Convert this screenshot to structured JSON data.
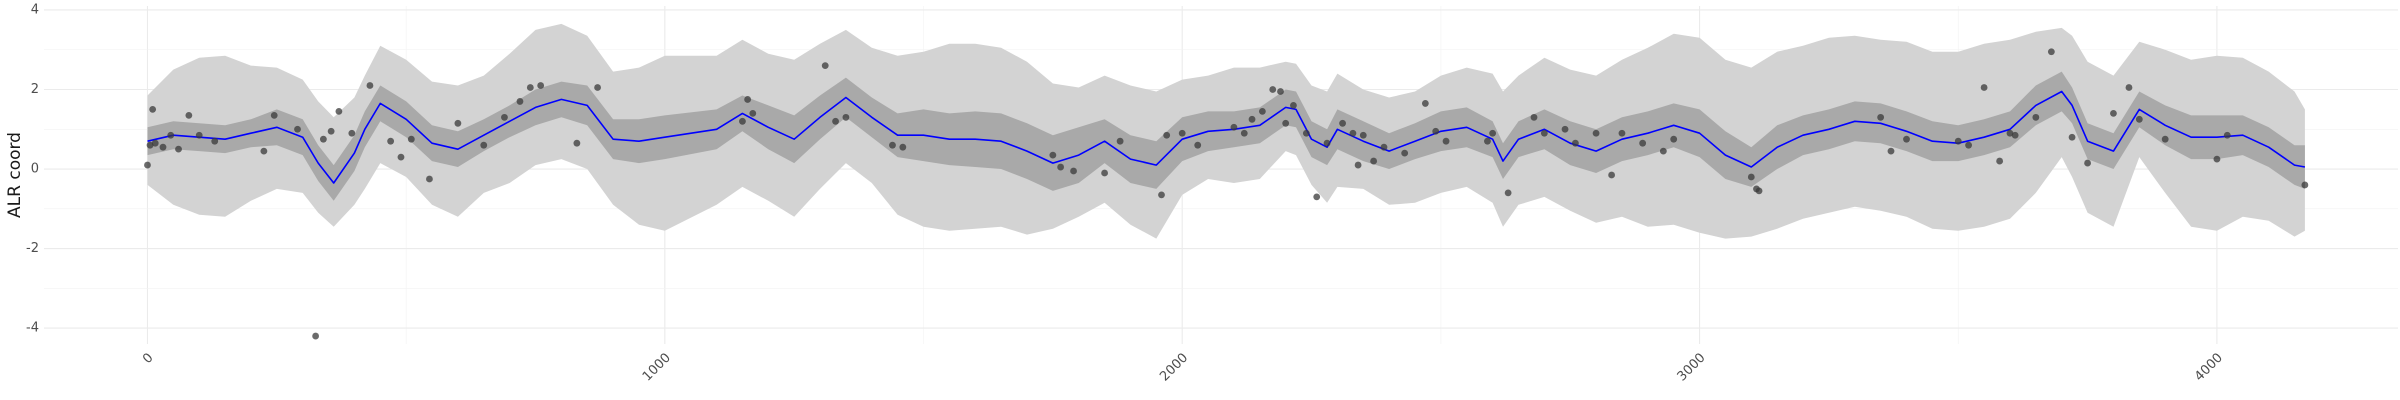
{
  "chart_data": {
    "type": "line",
    "title": "",
    "xlabel": "",
    "ylabel": "ALR coord",
    "xlim": [
      -200,
      4350
    ],
    "ylim": [
      -4.4,
      4.1
    ],
    "grid": true,
    "legend": "none",
    "x_ticks": [
      0,
      1000,
      2000,
      3000,
      4000
    ],
    "x_tick_labels": [
      "0",
      "1000",
      "2000",
      "3000",
      "4000"
    ],
    "y_ticks": [
      -4,
      -2,
      0,
      2,
      4
    ],
    "y_tick_labels": [
      "-4",
      "-2",
      "0",
      "2",
      "4"
    ],
    "colors": {
      "line": "#0000ff",
      "outer_band": "#d3d3d3",
      "inner_band": "#a9a9a9",
      "points": "#3a3a3a",
      "grid": "#ebebeb"
    },
    "series": [
      {
        "kind": "mean_line",
        "x": [
          0,
          50,
          100,
          150,
          200,
          250,
          300,
          330,
          360,
          400,
          420,
          450,
          500,
          550,
          600,
          650,
          700,
          750,
          800,
          850,
          900,
          950,
          1000,
          1100,
          1150,
          1200,
          1250,
          1300,
          1350,
          1400,
          1450,
          1500,
          1550,
          1600,
          1650,
          1700,
          1750,
          1800,
          1850,
          1900,
          1950,
          2000,
          2050,
          2100,
          2150,
          2200,
          2220,
          2250,
          2280,
          2300,
          2350,
          2400,
          2450,
          2500,
          2550,
          2600,
          2620,
          2650,
          2700,
          2750,
          2800,
          2850,
          2900,
          2950,
          3000,
          3050,
          3100,
          3150,
          3200,
          3250,
          3300,
          3350,
          3400,
          3450,
          3500,
          3550,
          3600,
          3650,
          3700,
          3720,
          3750,
          3800,
          3850,
          3900,
          3950,
          4000,
          4050,
          4100,
          4150,
          4170
        ],
        "y": [
          0.7,
          0.85,
          0.8,
          0.75,
          0.9,
          1.05,
          0.8,
          0.15,
          -0.35,
          0.4,
          1.0,
          1.65,
          1.25,
          0.65,
          0.5,
          0.85,
          1.2,
          1.55,
          1.75,
          1.6,
          0.75,
          0.7,
          0.8,
          1.0,
          1.4,
          1.05,
          0.75,
          1.3,
          1.8,
          1.3,
          0.85,
          0.85,
          0.75,
          0.75,
          0.7,
          0.45,
          0.15,
          0.35,
          0.7,
          0.25,
          0.1,
          0.75,
          0.95,
          1.0,
          1.1,
          1.55,
          1.5,
          0.75,
          0.55,
          1.0,
          0.7,
          0.45,
          0.7,
          0.95,
          1.05,
          0.75,
          0.2,
          0.75,
          1.0,
          0.65,
          0.45,
          0.75,
          0.9,
          1.1,
          0.9,
          0.35,
          0.05,
          0.55,
          0.85,
          1.0,
          1.2,
          1.15,
          0.95,
          0.7,
          0.65,
          0.8,
          1.0,
          1.6,
          1.95,
          1.6,
          0.7,
          0.45,
          1.5,
          1.1,
          0.8,
          0.8,
          0.85,
          0.55,
          0.1,
          0.05
        ]
      },
      {
        "kind": "inner_band",
        "x": [
          0,
          50,
          100,
          150,
          200,
          250,
          300,
          330,
          360,
          400,
          420,
          450,
          500,
          550,
          600,
          650,
          700,
          750,
          800,
          850,
          900,
          950,
          1000,
          1100,
          1150,
          1200,
          1250,
          1300,
          1350,
          1400,
          1450,
          1500,
          1550,
          1600,
          1650,
          1700,
          1750,
          1800,
          1850,
          1900,
          1950,
          2000,
          2050,
          2100,
          2150,
          2200,
          2220,
          2250,
          2280,
          2300,
          2350,
          2400,
          2450,
          2500,
          2550,
          2600,
          2620,
          2650,
          2700,
          2750,
          2800,
          2850,
          2900,
          2950,
          3000,
          3050,
          3100,
          3150,
          3200,
          3250,
          3300,
          3350,
          3400,
          3450,
          3500,
          3550,
          3600,
          3650,
          3700,
          3720,
          3750,
          3800,
          3850,
          3900,
          3950,
          4000,
          4050,
          4100,
          4150,
          4170
        ],
        "lower": [
          0.35,
          0.5,
          0.45,
          0.4,
          0.55,
          0.6,
          0.35,
          -0.3,
          -0.8,
          -0.05,
          0.55,
          1.2,
          0.8,
          0.2,
          0.05,
          0.45,
          0.8,
          1.1,
          1.3,
          1.1,
          0.25,
          0.15,
          0.25,
          0.5,
          0.95,
          0.5,
          0.15,
          0.75,
          1.3,
          0.8,
          0.3,
          0.2,
          0.1,
          0.05,
          0.0,
          -0.25,
          -0.55,
          -0.35,
          0.15,
          -0.35,
          -0.5,
          0.2,
          0.45,
          0.55,
          0.65,
          1.1,
          1.05,
          0.3,
          0.1,
          0.5,
          0.2,
          0.0,
          0.25,
          0.45,
          0.55,
          0.3,
          -0.25,
          0.3,
          0.5,
          0.1,
          -0.1,
          0.2,
          0.35,
          0.55,
          0.3,
          -0.25,
          -0.45,
          0.0,
          0.35,
          0.5,
          0.7,
          0.65,
          0.45,
          0.2,
          0.2,
          0.35,
          0.55,
          1.1,
          1.45,
          1.15,
          0.25,
          0.0,
          1.05,
          0.6,
          0.25,
          0.25,
          0.35,
          0.05,
          -0.4,
          -0.5
        ],
        "upper": [
          1.05,
          1.2,
          1.15,
          1.1,
          1.25,
          1.5,
          1.25,
          0.6,
          0.1,
          0.85,
          1.45,
          2.1,
          1.7,
          1.1,
          0.95,
          1.25,
          1.6,
          2.0,
          2.2,
          2.1,
          1.25,
          1.25,
          1.35,
          1.5,
          1.85,
          1.6,
          1.35,
          1.85,
          2.3,
          1.8,
          1.4,
          1.5,
          1.4,
          1.45,
          1.4,
          1.15,
          0.85,
          1.05,
          1.25,
          0.85,
          0.7,
          1.3,
          1.45,
          1.45,
          1.55,
          2.0,
          1.95,
          1.2,
          1.0,
          1.5,
          1.2,
          0.9,
          1.15,
          1.45,
          1.55,
          1.2,
          0.65,
          1.2,
          1.5,
          1.2,
          1.0,
          1.3,
          1.45,
          1.65,
          1.5,
          0.95,
          0.55,
          1.1,
          1.35,
          1.5,
          1.7,
          1.65,
          1.45,
          1.2,
          1.1,
          1.25,
          1.45,
          2.1,
          2.45,
          2.05,
          1.15,
          0.9,
          1.95,
          1.6,
          1.35,
          1.35,
          1.35,
          1.05,
          0.6,
          0.6
        ]
      },
      {
        "kind": "outer_band",
        "x": [
          0,
          50,
          100,
          150,
          200,
          250,
          300,
          330,
          360,
          400,
          420,
          450,
          500,
          550,
          600,
          650,
          700,
          750,
          800,
          850,
          900,
          950,
          1000,
          1100,
          1150,
          1200,
          1250,
          1300,
          1350,
          1400,
          1450,
          1500,
          1550,
          1600,
          1650,
          1700,
          1750,
          1800,
          1850,
          1900,
          1950,
          2000,
          2050,
          2100,
          2150,
          2200,
          2220,
          2250,
          2280,
          2300,
          2350,
          2400,
          2450,
          2500,
          2550,
          2600,
          2620,
          2650,
          2700,
          2750,
          2800,
          2850,
          2900,
          2950,
          3000,
          3050,
          3100,
          3150,
          3200,
          3250,
          3300,
          3350,
          3400,
          3450,
          3500,
          3550,
          3600,
          3650,
          3700,
          3720,
          3750,
          3800,
          3850,
          3900,
          3950,
          4000,
          4050,
          4100,
          4150,
          4170
        ],
        "lower": [
          -0.4,
          -0.9,
          -1.15,
          -1.2,
          -0.8,
          -0.5,
          -0.6,
          -1.1,
          -1.45,
          -0.9,
          -0.5,
          0.15,
          -0.2,
          -0.9,
          -1.2,
          -0.6,
          -0.35,
          0.1,
          0.25,
          0.0,
          -0.9,
          -1.4,
          -1.55,
          -0.9,
          -0.45,
          -0.8,
          -1.2,
          -0.5,
          0.15,
          -0.35,
          -1.15,
          -1.45,
          -1.55,
          -1.5,
          -1.45,
          -1.65,
          -1.5,
          -1.2,
          -0.85,
          -1.4,
          -1.75,
          -0.65,
          -0.25,
          -0.35,
          -0.25,
          0.45,
          0.35,
          -0.4,
          -0.85,
          -0.45,
          -0.5,
          -0.9,
          -0.85,
          -0.6,
          -0.45,
          -0.85,
          -1.45,
          -0.9,
          -0.7,
          -1.05,
          -1.35,
          -1.2,
          -1.45,
          -1.4,
          -1.6,
          -1.75,
          -1.7,
          -1.5,
          -1.25,
          -1.1,
          -0.95,
          -1.05,
          -1.2,
          -1.5,
          -1.55,
          -1.45,
          -1.25,
          -0.6,
          0.3,
          -0.2,
          -1.1,
          -1.45,
          0.3,
          -0.6,
          -1.45,
          -1.55,
          -1.2,
          -1.3,
          -1.7,
          -1.55
        ],
        "upper": [
          1.85,
          2.5,
          2.8,
          2.85,
          2.6,
          2.55,
          2.25,
          1.7,
          1.3,
          1.8,
          2.35,
          3.1,
          2.75,
          2.2,
          2.1,
          2.35,
          2.9,
          3.5,
          3.65,
          3.35,
          2.45,
          2.55,
          2.85,
          2.85,
          3.25,
          2.9,
          2.75,
          3.15,
          3.5,
          3.05,
          2.85,
          2.95,
          3.15,
          3.15,
          3.05,
          2.7,
          2.15,
          2.05,
          2.35,
          2.1,
          1.95,
          2.25,
          2.35,
          2.55,
          2.55,
          2.7,
          2.65,
          2.1,
          1.95,
          2.4,
          2.0,
          1.8,
          1.95,
          2.35,
          2.55,
          2.4,
          1.95,
          2.35,
          2.8,
          2.5,
          2.35,
          2.75,
          3.05,
          3.4,
          3.3,
          2.75,
          2.55,
          2.95,
          3.1,
          3.3,
          3.35,
          3.25,
          3.2,
          2.95,
          2.95,
          3.15,
          3.25,
          3.45,
          3.55,
          3.35,
          2.7,
          2.35,
          3.2,
          3.0,
          2.75,
          2.85,
          2.8,
          2.45,
          1.95,
          1.5
        ]
      },
      {
        "kind": "observations",
        "x": [
          0,
          5,
          10,
          15,
          30,
          45,
          60,
          80,
          100,
          130,
          225,
          245,
          290,
          325,
          340,
          355,
          370,
          395,
          430,
          470,
          490,
          510,
          545,
          600,
          650,
          690,
          720,
          740,
          760,
          830,
          870,
          1150,
          1160,
          1170,
          1310,
          1330,
          1350,
          1440,
          1460,
          1750,
          1765,
          1790,
          1850,
          1880,
          1960,
          1970,
          2000,
          2030,
          2100,
          2120,
          2135,
          2155,
          2175,
          2190,
          2200,
          2215,
          2240,
          2260,
          2280,
          2310,
          2330,
          2340,
          2350,
          2370,
          2390,
          2430,
          2470,
          2490,
          2510,
          2590,
          2600,
          2630,
          2680,
          2700,
          2740,
          2760,
          2800,
          2830,
          2850,
          2890,
          2930,
          2950,
          3100,
          3110,
          3115,
          3350,
          3370,
          3400,
          3500,
          3520,
          3550,
          3580,
          3600,
          3610,
          3650,
          3680,
          3720,
          3750,
          3800,
          3830,
          3850,
          3900,
          4000,
          4020,
          4170
        ],
        "y": [
          0.1,
          0.6,
          1.5,
          0.65,
          0.55,
          0.85,
          0.5,
          1.35,
          0.85,
          0.7,
          0.45,
          1.35,
          1.0,
          -4.2,
          0.75,
          0.95,
          1.45,
          0.9,
          2.1,
          0.7,
          0.3,
          0.75,
          -0.25,
          1.15,
          0.6,
          1.3,
          1.7,
          2.05,
          2.1,
          0.65,
          2.05,
          1.2,
          1.75,
          1.4,
          2.6,
          1.2,
          1.3,
          0.6,
          0.55,
          0.35,
          0.05,
          -0.05,
          -0.1,
          0.7,
          -0.65,
          0.85,
          0.9,
          0.6,
          1.05,
          0.9,
          1.25,
          1.45,
          2.0,
          1.95,
          1.15,
          1.6,
          0.9,
          -0.7,
          0.65,
          1.15,
          0.9,
          0.1,
          0.85,
          0.2,
          0.55,
          0.4,
          1.65,
          0.95,
          0.7,
          0.7,
          0.9,
          -0.6,
          1.3,
          0.9,
          1.0,
          0.65,
          0.9,
          -0.15,
          0.9,
          0.65,
          0.45,
          0.75,
          -0.2,
          -0.5,
          -0.55,
          1.3,
          0.45,
          0.75,
          0.7,
          0.6,
          2.05,
          0.2,
          0.9,
          0.85,
          1.3,
          2.95,
          0.8,
          0.15,
          1.4,
          2.05,
          1.25,
          0.75,
          0.25,
          0.85,
          -0.4
        ]
      }
    ]
  }
}
